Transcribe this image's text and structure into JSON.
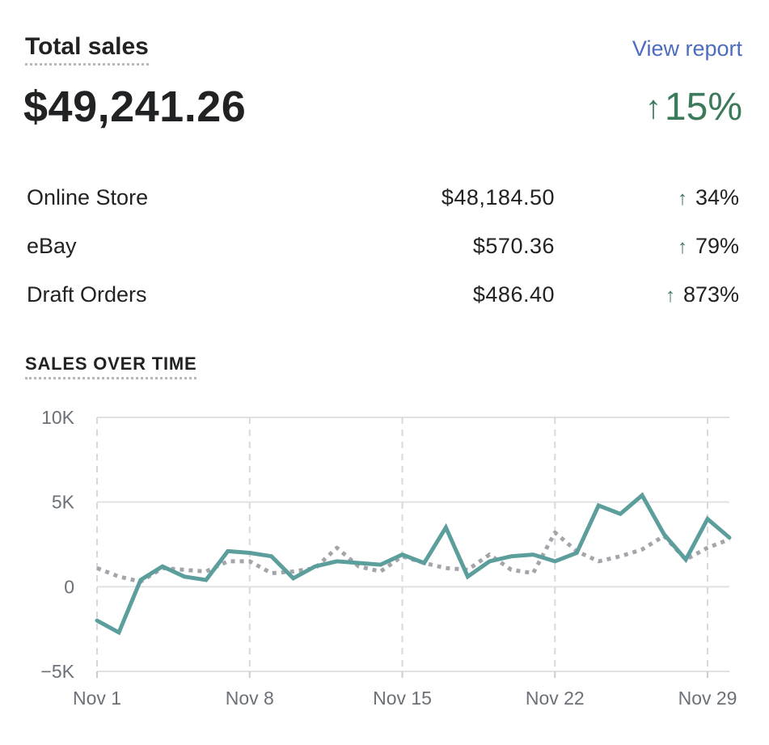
{
  "header": {
    "title": "Total sales",
    "view_report": "View report",
    "total": "$49,241.26",
    "change_arrow": "↑",
    "change": "15%"
  },
  "channels": [
    {
      "name": "Online Store",
      "amount": "$48,184.50",
      "arrow": "↑",
      "change": "34%"
    },
    {
      "name": "eBay",
      "amount": "$570.36",
      "arrow": "↑",
      "change": "79%"
    },
    {
      "name": "Draft Orders",
      "amount": "$486.40",
      "arrow": "↑",
      "change": "873%"
    }
  ],
  "section": {
    "title": "SALES OVER TIME"
  },
  "colors": {
    "current": "#5b9e9b",
    "previous": "#a3a5ab",
    "positive": "#3b7a5a",
    "link": "#4c6cc0"
  },
  "chart_data": {
    "type": "line",
    "ylim": [
      -5000,
      10000
    ],
    "y_ticks": [
      {
        "value": 10000,
        "label": "10K"
      },
      {
        "value": 5000,
        "label": "5K"
      },
      {
        "value": 0,
        "label": "0"
      },
      {
        "value": -5000,
        "label": "−5K"
      }
    ],
    "x_ticks": [
      {
        "day": 1,
        "label": "Nov 1"
      },
      {
        "day": 8,
        "label": "Nov 8"
      },
      {
        "day": 15,
        "label": "Nov 15"
      },
      {
        "day": 22,
        "label": "Nov 22"
      },
      {
        "day": 29,
        "label": "Nov 29"
      }
    ],
    "x": [
      1,
      2,
      3,
      4,
      5,
      6,
      7,
      8,
      9,
      10,
      11,
      12,
      13,
      14,
      15,
      16,
      17,
      18,
      19,
      20,
      21,
      22,
      23,
      24,
      25,
      26,
      27,
      28,
      29,
      30
    ],
    "grid": true,
    "series": [
      {
        "values": [
          -2000,
          -2700,
          400,
          1200,
          600,
          400,
          2100,
          2000,
          1800,
          500,
          1200,
          1500,
          1400,
          1300,
          1900,
          1400,
          3500,
          600,
          1500,
          1800,
          1900,
          1500,
          2000,
          4800,
          4300,
          5400,
          3100,
          1600,
          4000,
          2900
        ],
        "style": "solid"
      },
      {
        "values": [
          1100,
          600,
          300,
          1100,
          1000,
          900,
          1500,
          1500,
          800,
          900,
          1100,
          2300,
          1200,
          900,
          1800,
          1400,
          1100,
          1000,
          1900,
          1000,
          800,
          3200,
          2100,
          1500,
          1800,
          2200,
          3000,
          1600,
          2300,
          2800
        ],
        "style": "dotted"
      }
    ]
  }
}
